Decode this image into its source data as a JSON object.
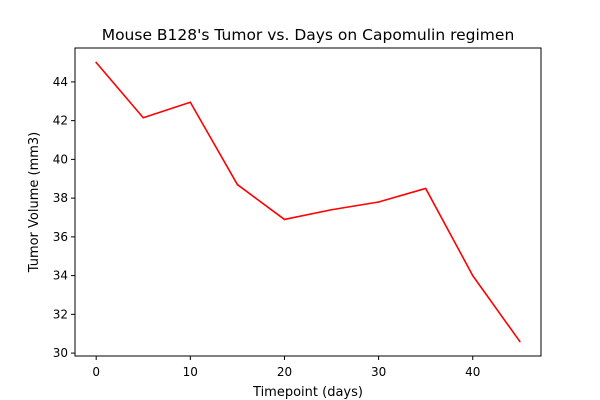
{
  "chart_data": {
    "type": "line",
    "title": "Mouse B128's Tumor vs. Days on Capomulin regimen",
    "xlabel": "Timepoint (days)",
    "ylabel": "Tumor Volume (mm3)",
    "x": [
      0,
      5,
      10,
      15,
      20,
      25,
      30,
      35,
      40,
      45
    ],
    "series": [
      {
        "values": [
          45.0,
          42.15,
          42.95,
          38.7,
          36.9,
          37.4,
          37.8,
          38.5,
          34.0,
          30.6
        ],
        "color": "#ff0000"
      }
    ],
    "xlim": [
      -2.25,
      47.25
    ],
    "ylim": [
      29.85,
      45.75
    ],
    "xticks": [
      0,
      10,
      20,
      30,
      40
    ],
    "yticks": [
      30,
      32,
      34,
      36,
      38,
      40,
      42,
      44
    ],
    "grid": false,
    "legend": "none"
  }
}
